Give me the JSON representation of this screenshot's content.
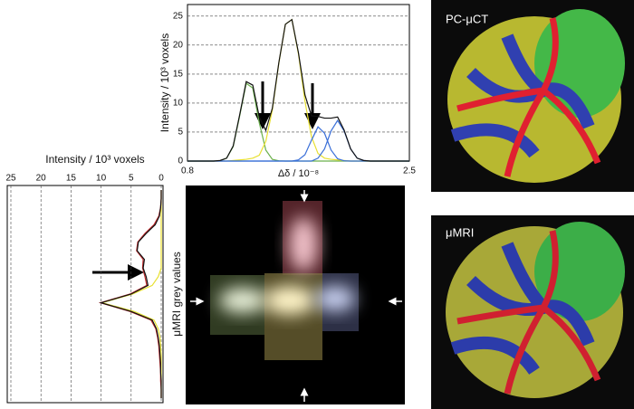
{
  "chart_data": [
    {
      "type": "line",
      "xlabel": "Δδ / 10⁻⁸",
      "ylabel": "Intensity / 10³ voxels",
      "x": [
        0.8,
        0.85,
        0.9,
        0.95,
        1.0,
        1.05,
        1.1,
        1.15,
        1.2,
        1.25,
        1.3,
        1.35,
        1.4,
        1.45,
        1.5,
        1.55,
        1.6,
        1.65,
        1.7,
        1.75,
        1.8,
        1.85,
        1.9,
        1.95,
        2.0,
        2.05,
        2.1,
        2.15,
        2.2,
        2.25,
        2.3,
        2.35,
        2.4,
        2.45,
        2.5
      ],
      "xlim": [
        0.8,
        2.5
      ],
      "xticks": [
        0.8,
        2.5
      ],
      "ylim": [
        0,
        27
      ],
      "yticks": [
        0,
        5,
        10,
        15,
        20,
        25
      ],
      "grid": true,
      "series": [
        {
          "color": "#6ab04c",
          "values": [
            0,
            0,
            0,
            0,
            0,
            0.05,
            0.5,
            2.5,
            7.8,
            13.4,
            12.6,
            6.6,
            1.9,
            0.3,
            0.05,
            0,
            0,
            0,
            0,
            0,
            0,
            0,
            0,
            0,
            0,
            0,
            0,
            0,
            0,
            0,
            0,
            0,
            0,
            0,
            0
          ]
        },
        {
          "color": "#e8e030",
          "values": [
            0,
            0,
            0,
            0,
            0,
            0,
            0,
            0.1,
            0.2,
            0.3,
            0.5,
            1.0,
            3.4,
            8.8,
            16.9,
            23.6,
            24.4,
            18.5,
            10.3,
            4.2,
            1.3,
            0.5,
            0.3,
            0.2,
            0.1,
            0,
            0,
            0,
            0,
            0,
            0,
            0,
            0,
            0,
            0
          ]
        },
        {
          "color": "#3a6fd8",
          "values": [
            0,
            0,
            0,
            0,
            0,
            0,
            0,
            0,
            0,
            0,
            0,
            0,
            0,
            0,
            0,
            0,
            0,
            0.2,
            1.1,
            3.6,
            5.9,
            4.8,
            1.9,
            0.4,
            0.05,
            0,
            0,
            0,
            0,
            0,
            0,
            0,
            0,
            0,
            0
          ]
        },
        {
          "color": "#3a6fd8",
          "values": [
            0,
            0,
            0,
            0,
            0,
            0,
            0,
            0,
            0,
            0,
            0,
            0,
            0,
            0,
            0,
            0,
            0,
            0,
            0,
            0,
            0.5,
            2.1,
            5.2,
            7.0,
            5.2,
            2.1,
            0.5,
            0.1,
            0,
            0,
            0,
            0,
            0,
            0,
            0
          ]
        },
        {
          "color": "#111111",
          "values": [
            0,
            0,
            0,
            0,
            0,
            0.1,
            0.5,
            2.6,
            8.0,
            13.7,
            13.1,
            7.6,
            5.3,
            9.1,
            17.0,
            23.6,
            24.4,
            18.7,
            11.4,
            7.8,
            7.7,
            7.4,
            7.4,
            7.6,
            5.35,
            2.1,
            0.5,
            0.1,
            0,
            0,
            0,
            0,
            0,
            0,
            0
          ]
        }
      ]
    },
    {
      "type": "hline",
      "xlabel": "Intensity / 10³ voxels",
      "categories": [
        null,
        null,
        null,
        null,
        null,
        null,
        null,
        null,
        null,
        null,
        null,
        null,
        null,
        null,
        null,
        null,
        null,
        null,
        null,
        null,
        null,
        null,
        null,
        null,
        null
      ],
      "xlim": [
        25,
        0
      ],
      "xticks": [
        25,
        20,
        15,
        10,
        5,
        0
      ],
      "grid": true,
      "series": [
        {
          "color": "#e8e030",
          "values": [
            0,
            0,
            0,
            0,
            0,
            0,
            0,
            0,
            0,
            0,
            0.5,
            1.5,
            4.8,
            9.8,
            4.5,
            1.2,
            0.5,
            0.2,
            0.1,
            0,
            0,
            0,
            0,
            0,
            0
          ]
        },
        {
          "color": "#c0282a",
          "values": [
            0,
            0,
            0.1,
            0.4,
            1.2,
            2.7,
            3.9,
            4.1,
            3.0,
            3.1,
            2.7,
            2.4,
            5.2,
            10.1,
            5.2,
            1.7,
            0.9,
            0.6,
            0.4,
            0.3,
            0.2,
            0.1,
            0.1,
            0,
            0
          ]
        },
        {
          "color": "#111111",
          "values": [
            0,
            0,
            0.1,
            0.3,
            1,
            2.5,
            3.8,
            4,
            2.8,
            3,
            2.5,
            2.2,
            5,
            10,
            5,
            1.5,
            0.8,
            0.5,
            0.3,
            0.2,
            0.1,
            0.1,
            0,
            0,
            0
          ]
        }
      ]
    }
  ],
  "images": {
    "ct_label": "PC-μCT",
    "mri_label": "μMRI",
    "grey_label": "μMRI grey values"
  }
}
